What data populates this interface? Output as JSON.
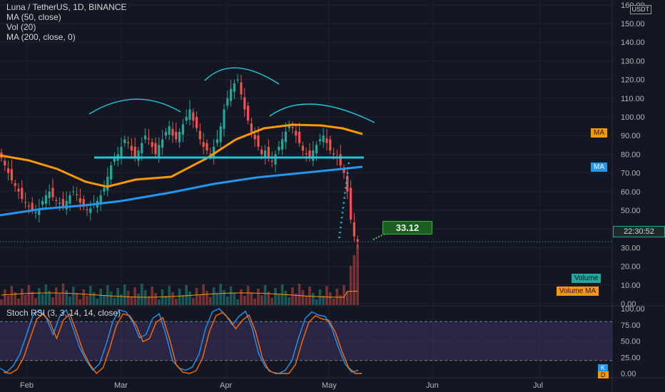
{
  "legend": {
    "symbol": "Luna / TetherUS, 1D, BINANCE",
    "ma50": "MA (50, close)",
    "vol": "Vol (20)",
    "ma200": "MA (200, close, 0)",
    "stoch": "Stoch RSI (3, 3, 14, 14, close)"
  },
  "currency_badge": "USDT",
  "price_callout": "33.12",
  "current_price_time": "22:30:52",
  "tags": {
    "ma_orange": "MA",
    "ma_blue": "MA",
    "volume": "Volume",
    "volume_ma": "Volume MA",
    "k": "K",
    "d": "D"
  },
  "colors": {
    "background": "#131722",
    "up": "#26a69a",
    "down": "#ef5350",
    "ma50": "#ff9800",
    "ma200": "#2196f3",
    "annotation": "#26c6da",
    "callout": "#1b5e20",
    "stoch_band": "#7e57c2",
    "stoch_k": "#2196f3",
    "stoch_d": "#ff6d00"
  },
  "chart_data": [
    {
      "type": "candlestick",
      "x_ticks": [
        "Feb",
        "Mar",
        "Apr",
        "May",
        "Jun",
        "Jul"
      ],
      "y_ticks": [
        "160.00",
        "150.00",
        "140.00",
        "130.00",
        "120.00",
        "110.00",
        "100.00",
        "90.00",
        "80.00",
        "70.00",
        "60.00",
        "50.00",
        "40.00",
        "30.00",
        "20.00",
        "10.00",
        "0.00"
      ],
      "ylim": [
        0,
        160
      ],
      "last_price": 33.12,
      "ma50_end": 89,
      "ma200_end": 72,
      "neckline_level": 77,
      "candles_close": [
        78,
        74,
        70,
        66,
        63,
        60,
        56,
        54,
        52,
        50,
        49,
        51,
        55,
        58,
        60,
        57,
        55,
        54,
        52,
        55,
        58,
        60,
        58,
        54,
        52,
        50,
        51,
        53,
        55,
        58,
        62,
        68,
        74,
        78,
        80,
        84,
        88,
        86,
        82,
        78,
        82,
        86,
        90,
        88,
        84,
        80,
        85,
        88,
        92,
        95,
        90,
        88,
        92,
        96,
        100,
        104,
        98,
        94,
        88,
        84,
        82,
        80,
        84,
        88,
        95,
        104,
        110,
        115,
        118,
        120,
        112,
        104,
        98,
        92,
        88,
        84,
        80,
        82,
        78,
        76,
        80,
        84,
        88,
        92,
        96,
        94,
        90,
        86,
        82,
        80,
        78,
        82,
        85,
        88,
        90,
        86,
        82,
        80,
        78,
        74,
        70,
        60,
        45,
        36,
        33.12
      ]
    },
    {
      "type": "bar",
      "name": "Volume"
    },
    {
      "type": "line",
      "name": "Stoch RSI",
      "y_ticks": [
        "100.00",
        "75.00",
        "50.00",
        "25.00",
        "0.00"
      ],
      "ylim": [
        0,
        100
      ],
      "band": [
        20,
        80
      ]
    }
  ]
}
